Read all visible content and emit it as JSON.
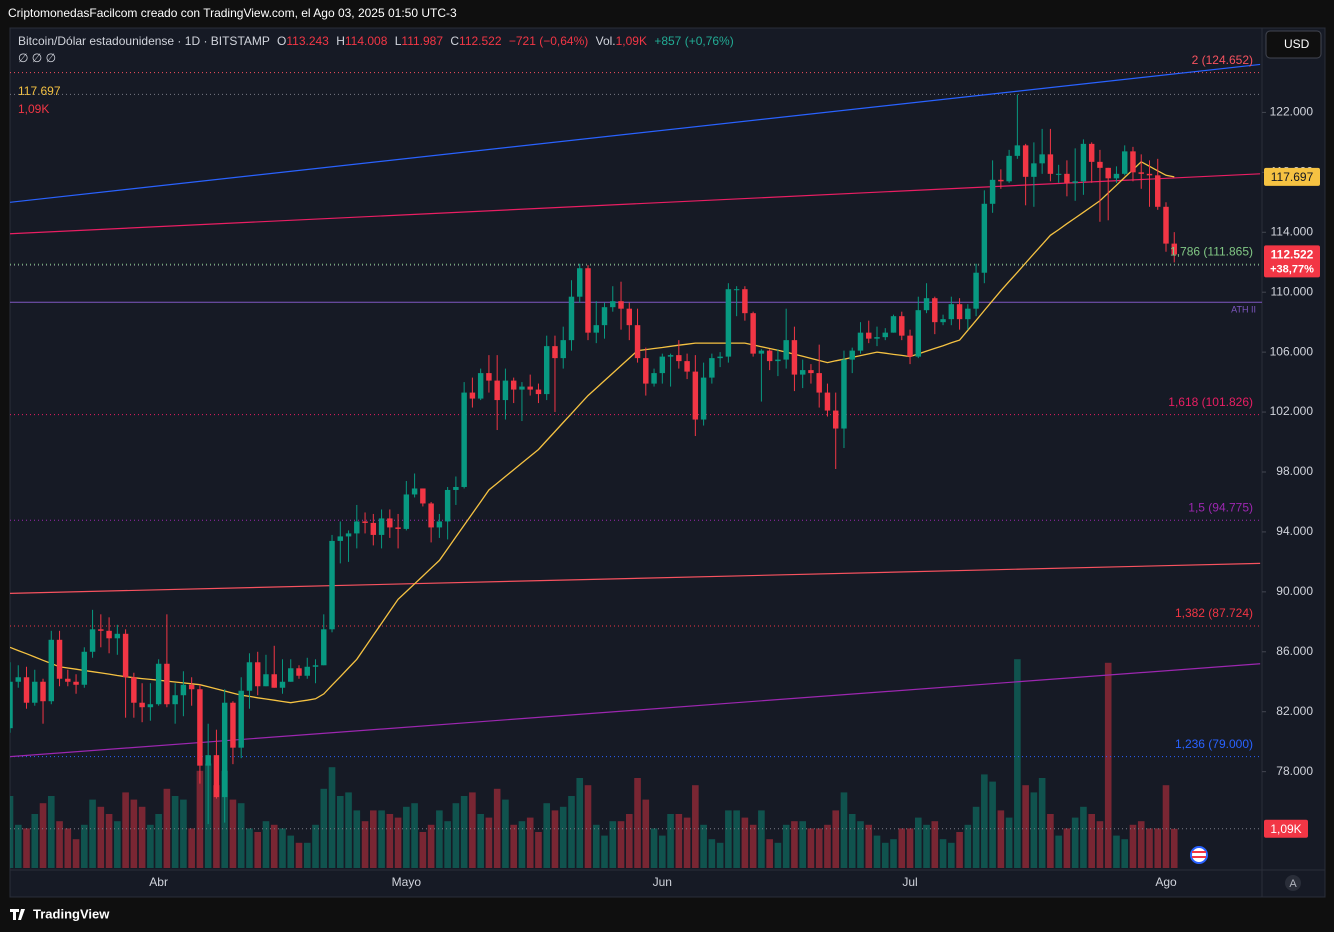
{
  "header": {
    "title": "CriptomonedasFacilcom creado con TradingView.com, el Ago 03, 2025 01:50 UTC-3"
  },
  "legend": {
    "symbol": "Bitcoin/Dólar estadounidense · 1D · BITSTAMP",
    "items": [
      {
        "label": "O",
        "value": "113.243"
      },
      {
        "label": "H",
        "value": "114.008"
      },
      {
        "label": "L",
        "value": "111.987"
      },
      {
        "label": "C",
        "value": "112.522"
      }
    ],
    "change": "−721 (−0,64%)",
    "vol_label": "Vol.",
    "vol": "1,09K",
    "vol_change": "+857 (+0,76%)",
    "indicators": "∅ ∅ ∅",
    "ma_value": "117.697",
    "vol_value": "1,09K"
  },
  "currency": "USD",
  "auto": "A",
  "brand": "TradingView",
  "chart_data": {
    "type": "candlestick",
    "categories": [
      null,
      null,
      null,
      null,
      null,
      null,
      null,
      null,
      null,
      null,
      null,
      null,
      null,
      null,
      null,
      null,
      null,
      null,
      "Abr",
      null,
      null,
      null,
      null,
      null,
      null,
      null,
      null,
      null,
      null,
      null,
      null,
      null,
      null,
      null,
      null,
      null,
      null,
      null,
      null,
      null,
      null,
      null,
      null,
      null,
      null,
      null,
      null,
      null,
      "Mayo",
      null,
      null,
      null,
      null,
      null,
      null,
      null,
      null,
      null,
      null,
      null,
      null,
      null,
      null,
      null,
      null,
      null,
      null,
      null,
      null,
      null,
      null,
      null,
      null,
      null,
      null,
      null,
      null,
      null,
      null,
      "Jun",
      null,
      null,
      null,
      null,
      null,
      null,
      null,
      null,
      null,
      null,
      null,
      null,
      null,
      null,
      null,
      null,
      null,
      null,
      null,
      null,
      null,
      null,
      null,
      null,
      null,
      null,
      null,
      null,
      null,
      "Jul",
      null,
      null,
      null,
      null,
      null,
      null,
      null,
      null,
      null,
      null,
      null,
      null,
      null,
      null,
      null,
      null,
      null,
      null,
      null,
      null,
      null,
      null,
      null,
      null,
      null,
      null,
      null,
      null,
      null,
      null,
      "Ago",
      null
    ],
    "open": [
      80900,
      84000,
      84300,
      82600,
      84000,
      82700,
      86800,
      84200,
      84000,
      83800,
      86000,
      87500,
      87400,
      86900,
      87200,
      84300,
      82600,
      82300,
      82500,
      85200,
      82500,
      83100,
      83800,
      83500,
      78400,
      79100,
      76300,
      82600,
      79600,
      83400,
      85300,
      83700,
      84500,
      83600,
      84000,
      84900,
      84400,
      85000,
      85100,
      87500,
      93400,
      93700,
      93900,
      94700,
      94600,
      93800,
      94900,
      94300,
      94200,
      96500,
      96900,
      95900,
      94300,
      94700,
      96800,
      97000,
      103300,
      102900,
      104600,
      104100,
      102800,
      104100,
      103500,
      103700,
      103500,
      103200,
      106400,
      105600,
      106800,
      109700,
      111600,
      107300,
      107800,
      109000,
      109400,
      108900,
      107800,
      105600,
      103900,
      104600,
      105700,
      105800,
      105400,
      104700,
      101500,
      104300,
      105600,
      105700,
      110200,
      110200,
      108600,
      105900,
      106100,
      105400,
      105500,
      106800,
      104500,
      104800,
      104600,
      103300,
      102100,
      100900,
      105500,
      106100,
      107300,
      106900,
      107000,
      107300,
      108400,
      107100,
      105700,
      108800,
      109600,
      108000,
      108200,
      109200,
      108200,
      108900,
      111300,
      115900,
      117500,
      117400,
      119100,
      119800,
      117700,
      118600,
      119200,
      117900,
      117900,
      117300,
      117400,
      119900,
      118700,
      118300,
      117600,
      117900,
      119400,
      118000,
      117900,
      117800,
      115700,
      113243
    ],
    "high": [
      85300,
      85100,
      85000,
      84800,
      84200,
      87400,
      87400,
      84800,
      84500,
      86300,
      88800,
      88500,
      88300,
      87800,
      87500,
      84600,
      83900,
      83900,
      85500,
      88500,
      83900,
      84700,
      84300,
      83800,
      81200,
      80800,
      83500,
      82700,
      84300,
      85900,
      86000,
      85800,
      86400,
      85500,
      85500,
      85100,
      85600,
      85500,
      88500,
      93800,
      94700,
      94100,
      95800,
      95300,
      95200,
      95500,
      95500,
      95200,
      97400,
      97900,
      96900,
      96000,
      95200,
      97000,
      97700,
      104000,
      104300,
      104900,
      105800,
      105800,
      104900,
      104300,
      104000,
      104500,
      103900,
      107100,
      107100,
      107700,
      110800,
      111900,
      111800,
      109400,
      109300,
      110400,
      110700,
      109300,
      108900,
      106300,
      104900,
      105900,
      105900,
      106800,
      105900,
      105800,
      105300,
      105900,
      106000,
      110600,
      110400,
      110400,
      108700,
      106200,
      106200,
      106200,
      108900,
      107700,
      105500,
      105200,
      106500,
      103900,
      103300,
      106100,
      106300,
      108000,
      108100,
      107700,
      107600,
      108500,
      108700,
      107500,
      109700,
      110600,
      109700,
      108500,
      109700,
      109600,
      109200,
      111900,
      116800,
      118800,
      118200,
      119500,
      123200,
      119900,
      120000,
      120900,
      120900,
      118500,
      118800,
      119600,
      120200,
      120000,
      119500,
      118300,
      118400,
      119800,
      119700,
      119200,
      118800,
      118900,
      116000,
      114008
    ],
    "low": [
      80600,
      83600,
      82200,
      82400,
      81200,
      82500,
      83700,
      83700,
      83200,
      83600,
      85600,
      86300,
      85900,
      85800,
      81600,
      81600,
      81300,
      81400,
      82400,
      82300,
      81200,
      81700,
      82400,
      77200,
      74500,
      76200,
      74600,
      78500,
      78900,
      82200,
      83100,
      83700,
      83600,
      83200,
      84000,
      84200,
      84200,
      83900,
      85100,
      87300,
      91900,
      92000,
      92900,
      93900,
      93100,
      92900,
      93600,
      92900,
      94100,
      96300,
      95700,
      93300,
      93600,
      93500,
      95800,
      96900,
      102300,
      102800,
      103300,
      100800,
      101500,
      102600,
      101400,
      103100,
      102600,
      102800,
      102000,
      104900,
      106100,
      109300,
      106800,
      106600,
      106900,
      108700,
      107500,
      106800,
      105300,
      103100,
      103700,
      103900,
      103700,
      104900,
      104200,
      100400,
      101100,
      103900,
      105000,
      105300,
      108400,
      108100,
      105700,
      102700,
      104800,
      104400,
      104900,
      103400,
      103600,
      103900,
      102300,
      101700,
      98200,
      99600,
      104600,
      105900,
      106600,
      106400,
      106800,
      107300,
      106800,
      105200,
      105600,
      108600,
      107200,
      107800,
      107800,
      107500,
      107500,
      108400,
      110600,
      115300,
      116900,
      117300,
      118900,
      115800,
      115700,
      117900,
      117400,
      117300,
      116400,
      116100,
      116500,
      117300,
      114700,
      114800,
      117300,
      117800,
      117400,
      116900,
      115700,
      115500,
      112700,
      111987
    ],
    "close": [
      84000,
      84300,
      82600,
      84000,
      82700,
      86800,
      84200,
      84000,
      83800,
      86000,
      87500,
      87400,
      86900,
      87200,
      84300,
      82600,
      82300,
      82500,
      85200,
      82500,
      83100,
      83800,
      83500,
      78400,
      79100,
      76300,
      82600,
      79600,
      83400,
      85300,
      83700,
      84500,
      83600,
      84000,
      84900,
      84400,
      85000,
      85100,
      87500,
      93400,
      93700,
      93900,
      94700,
      94600,
      93800,
      94900,
      94300,
      94200,
      96500,
      96900,
      95900,
      94300,
      94700,
      96800,
      97000,
      103300,
      102900,
      104600,
      104100,
      102800,
      104100,
      103500,
      103700,
      103500,
      103200,
      106400,
      105600,
      106800,
      109700,
      111600,
      107300,
      107800,
      109000,
      109400,
      108900,
      107800,
      105600,
      103900,
      104600,
      105700,
      105800,
      105400,
      104700,
      101500,
      104300,
      105600,
      105700,
      110200,
      110200,
      108600,
      105900,
      106100,
      105400,
      105500,
      106800,
      104500,
      104800,
      104600,
      103300,
      102100,
      100900,
      105500,
      106100,
      107300,
      106900,
      107000,
      107300,
      108400,
      107100,
      105700,
      108800,
      109600,
      108000,
      108200,
      109200,
      108200,
      108900,
      111300,
      115900,
      117500,
      117400,
      119100,
      119800,
      117700,
      118600,
      119200,
      117900,
      117900,
      117300,
      117400,
      119900,
      118700,
      118300,
      117600,
      117900,
      119400,
      118000,
      117900,
      117800,
      115700,
      113243,
      112522
    ],
    "volume": [
      2.0,
      1.2,
      1.1,
      1.5,
      1.8,
      2.0,
      1.3,
      1.1,
      0.8,
      1.2,
      1.9,
      1.7,
      1.5,
      1.3,
      2.1,
      1.9,
      1.7,
      1.2,
      1.5,
      2.2,
      2.0,
      1.9,
      1.1,
      2.7,
      2.9,
      2.3,
      2.7,
      1.9,
      1.8,
      1.1,
      1.0,
      1.3,
      1.2,
      1.1,
      0.9,
      0.7,
      0.7,
      1.2,
      2.2,
      2.8,
      2.0,
      2.1,
      1.6,
      1.3,
      1.6,
      1.6,
      1.5,
      1.4,
      1.7,
      1.8,
      1.0,
      1.2,
      1.6,
      1.3,
      1.8,
      2.0,
      2.1,
      1.5,
      1.4,
      2.2,
      1.9,
      1.2,
      1.3,
      1.4,
      1.0,
      1.8,
      1.6,
      1.7,
      2.0,
      2.5,
      2.3,
      1.2,
      0.9,
      1.3,
      1.3,
      1.5,
      2.5,
      1.9,
      1.1,
      0.9,
      1.5,
      1.5,
      1.4,
      2.3,
      1.2,
      0.8,
      0.7,
      1.6,
      1.6,
      1.4,
      1.2,
      1.6,
      0.8,
      0.7,
      1.2,
      1.3,
      1.3,
      1.1,
      1.1,
      1.2,
      1.6,
      2.1,
      1.5,
      1.3,
      1.2,
      0.9,
      0.7,
      0.8,
      1.1,
      1.1,
      1.4,
      1.2,
      1.3,
      0.8,
      0.7,
      1.0,
      1.2,
      1.7,
      2.6,
      2.4,
      1.6,
      1.4,
      5.8,
      2.3,
      2.1,
      2.5,
      1.5,
      0.9,
      1.1,
      1.4,
      1.7,
      1.5,
      1.3,
      5.7,
      0.9,
      0.8,
      1.2,
      1.3,
      1.1,
      1.1,
      2.3,
      1.09
    ],
    "up_color": "#089981",
    "down_color": "#f23645",
    "ma": {
      "color": "#f5c242",
      "values": [
        86300,
        86080,
        85870,
        85650,
        85430,
        85220,
        85000,
        84920,
        84840,
        84750,
        84670,
        84590,
        84510,
        84420,
        84340,
        84270,
        84210,
        84160,
        84100,
        84040,
        83980,
        83920,
        83860,
        83800,
        83660,
        83520,
        83380,
        83240,
        83100,
        83020,
        82930,
        82850,
        82770,
        82680,
        82600,
        82690,
        82770,
        82860,
        83190,
        83770,
        84340,
        84920,
        85500,
        86300,
        87100,
        87900,
        88700,
        89500,
        90020,
        90540,
        91060,
        91580,
        92100,
        92880,
        93670,
        94450,
        95230,
        96020,
        96800,
        97250,
        97700,
        98150,
        98600,
        99050,
        99500,
        100100,
        100700,
        101300,
        101900,
        102500,
        103100,
        103600,
        104100,
        104600,
        105100,
        105600,
        106100,
        106170,
        106240,
        106310,
        106390,
        106460,
        106530,
        106600,
        106600,
        106600,
        106600,
        106600,
        106600,
        106600,
        106480,
        106360,
        106240,
        106120,
        106000,
        105860,
        105720,
        105580,
        105440,
        105300,
        105420,
        105530,
        105650,
        105770,
        105880,
        106000,
        105930,
        105850,
        105780,
        105700,
        105880,
        106070,
        106250,
        106430,
        106620,
        106800,
        107460,
        108120,
        108780,
        109440,
        110100,
        110720,
        111330,
        111950,
        112570,
        113180,
        113800,
        114180,
        114570,
        114950,
        115330,
        115720,
        116100,
        116620,
        117140,
        117660,
        118180,
        118700,
        118400,
        118100,
        117800,
        117697
      ]
    },
    "ylim": [
      69700,
      127500
    ],
    "yticks": [
      {
        "value": 78000,
        "label": "78.000"
      },
      {
        "value": 82000,
        "label": "82.000"
      },
      {
        "value": 86000,
        "label": "86.000"
      },
      {
        "value": 90000,
        "label": "90.000"
      },
      {
        "value": 94000,
        "label": "94.000"
      },
      {
        "value": 98000,
        "label": "98.000"
      },
      {
        "value": 102000,
        "label": "102.000"
      },
      {
        "value": 106000,
        "label": "106.000"
      },
      {
        "value": 110000,
        "label": "110.000"
      },
      {
        "value": 114000,
        "label": "114.000"
      },
      {
        "value": 118000,
        "label": "118.000"
      },
      {
        "value": 122000,
        "label": "122.000"
      }
    ],
    "grid": false,
    "fib_levels": [
      {
        "label": "2 (124.652)",
        "value": 124652,
        "color": "#f7525f"
      },
      {
        "label": "1,786 (111.865)",
        "value": 111865,
        "color": "#81c784"
      },
      {
        "label": "1,618 (101.826)",
        "value": 101826,
        "color": "#e91e63"
      },
      {
        "label": "1,5 (94.775)",
        "value": 94775,
        "color": "#9c27b0"
      },
      {
        "label": "1,382 (87.724)",
        "value": 87724,
        "color": "#f23645"
      },
      {
        "label": "1,236 (79.000)",
        "value": 79000,
        "color": "#2962ff"
      }
    ],
    "hlines": [
      {
        "value": 123200,
        "color": "#787b86"
      },
      {
        "value": 111800,
        "color": "#787b86"
      }
    ],
    "ath_line": {
      "label": "ATH II",
      "value": 109330,
      "color": "#7e57c2"
    },
    "trend_lines": [
      {
        "x": [
          0,
          151.4
        ],
        "y": [
          116000,
          125200
        ],
        "color": "#2962ff"
      },
      {
        "x": [
          0,
          151.4
        ],
        "y": [
          113900,
          117900
        ],
        "color": "#e91e63"
      },
      {
        "x": [
          0,
          151.4
        ],
        "y": [
          89900,
          91900
        ],
        "color": "#f7525f"
      },
      {
        "x": [
          0,
          151.4
        ],
        "y": [
          79000,
          85200
        ],
        "color": "#9c27b0"
      }
    ],
    "last_price_label": "112.522",
    "change_pct": "+38,77%"
  }
}
